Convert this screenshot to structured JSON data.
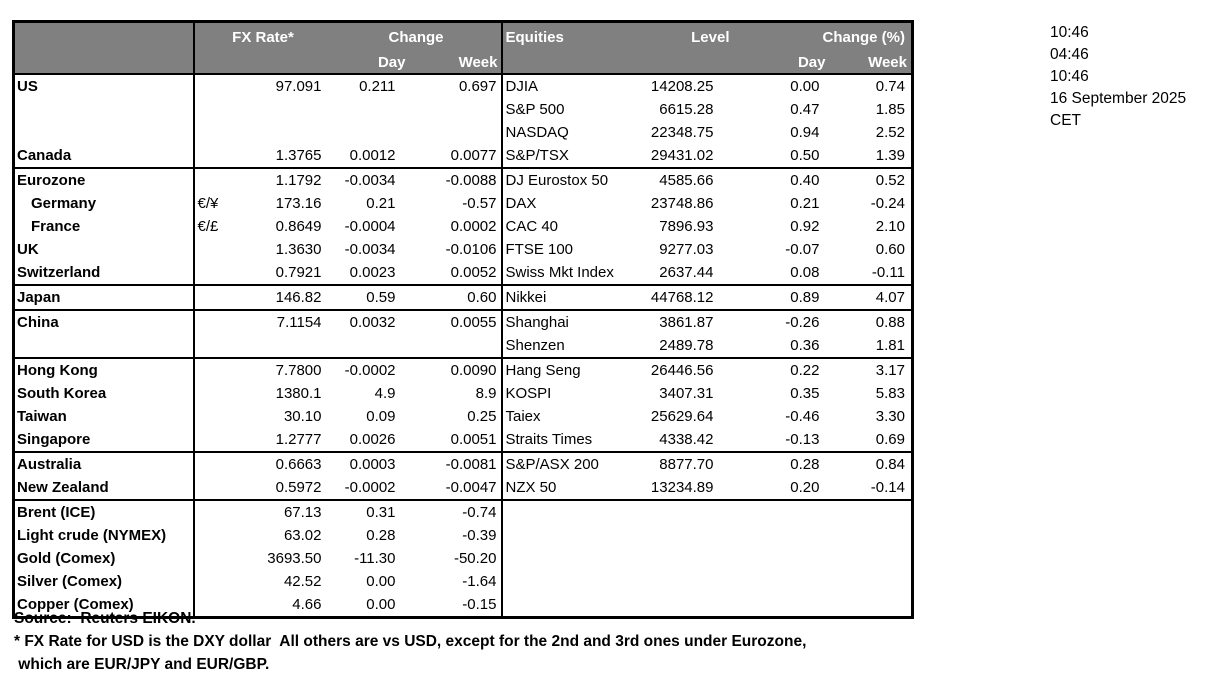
{
  "colors": {
    "header_bg": "#808080",
    "header_text": "#ffffff",
    "border": "#000000",
    "background": "#ffffff",
    "text": "#000000"
  },
  "table": {
    "header": {
      "fx_rate": "FX Rate*",
      "change": "Change",
      "day": "Day",
      "week": "Week",
      "equities": "Equities",
      "level": "Level",
      "change_pct": "Change (%)"
    },
    "rows": [
      {
        "country": "US",
        "pair": "",
        "rate": "97.091",
        "fx_day": "0.211",
        "fx_week": "0.697",
        "equity": "DJIA",
        "level": "14208.25",
        "eq_day": "0.00",
        "eq_week": "0.74",
        "group": false,
        "indent": false
      },
      {
        "country": "",
        "pair": "",
        "rate": "",
        "fx_day": "",
        "fx_week": "",
        "equity": "S&P 500",
        "level": "6615.28",
        "eq_day": "0.47",
        "eq_week": "1.85",
        "group": false,
        "indent": false
      },
      {
        "country": "",
        "pair": "",
        "rate": "",
        "fx_day": "",
        "fx_week": "",
        "equity": "NASDAQ",
        "level": "22348.75",
        "eq_day": "0.94",
        "eq_week": "2.52",
        "group": false,
        "indent": false
      },
      {
        "country": "Canada",
        "pair": "",
        "rate": "1.3765",
        "fx_day": "0.0012",
        "fx_week": "0.0077",
        "equity": "S&P/TSX",
        "level": "29431.02",
        "eq_day": "0.50",
        "eq_week": "1.39",
        "group": false,
        "indent": false
      },
      {
        "country": "Eurozone",
        "pair": "",
        "rate": "1.1792",
        "fx_day": "-0.0034",
        "fx_week": "-0.0088",
        "equity": "DJ Eurostox 50",
        "level": "4585.66",
        "eq_day": "0.40",
        "eq_week": "0.52",
        "group": true,
        "indent": false
      },
      {
        "country": "Germany",
        "pair": "€/¥",
        "rate": "173.16",
        "fx_day": "0.21",
        "fx_week": "-0.57",
        "equity": "DAX",
        "level": "23748.86",
        "eq_day": "0.21",
        "eq_week": "-0.24",
        "group": false,
        "indent": true
      },
      {
        "country": "France",
        "pair": "€/£",
        "rate": "0.8649",
        "fx_day": "-0.0004",
        "fx_week": "0.0002",
        "equity": "CAC 40",
        "level": "7896.93",
        "eq_day": "0.92",
        "eq_week": "2.10",
        "group": false,
        "indent": true
      },
      {
        "country": "UK",
        "pair": "",
        "rate": "1.3630",
        "fx_day": "-0.0034",
        "fx_week": "-0.0106",
        "equity": "FTSE 100",
        "level": "9277.03",
        "eq_day": "-0.07",
        "eq_week": "0.60",
        "group": false,
        "indent": false
      },
      {
        "country": "Switzerland",
        "pair": "",
        "rate": "0.7921",
        "fx_day": "0.0023",
        "fx_week": "0.0052",
        "equity": "Swiss Mkt Index",
        "level": "2637.44",
        "eq_day": "0.08",
        "eq_week": "-0.11",
        "group": false,
        "indent": false
      },
      {
        "country": "Japan",
        "pair": "",
        "rate": "146.82",
        "fx_day": "0.59",
        "fx_week": "0.60",
        "equity": "Nikkei",
        "level": "44768.12",
        "eq_day": "0.89",
        "eq_week": "4.07",
        "group": true,
        "indent": false
      },
      {
        "country": "China",
        "pair": "",
        "rate": "7.1154",
        "fx_day": "0.0032",
        "fx_week": "0.0055",
        "equity": "Shanghai",
        "level": "3861.87",
        "eq_day": "-0.26",
        "eq_week": "0.88",
        "group": true,
        "indent": false
      },
      {
        "country": "",
        "pair": "",
        "rate": "",
        "fx_day": "",
        "fx_week": "",
        "equity": "Shenzen",
        "level": "2489.78",
        "eq_day": "0.36",
        "eq_week": "1.81",
        "group": false,
        "indent": false
      },
      {
        "country": "Hong Kong",
        "pair": "",
        "rate": "7.7800",
        "fx_day": "-0.0002",
        "fx_week": "0.0090",
        "equity": "Hang Seng",
        "level": "26446.56",
        "eq_day": "0.22",
        "eq_week": "3.17",
        "group": true,
        "indent": false
      },
      {
        "country": "South Korea",
        "pair": "",
        "rate": "1380.1",
        "fx_day": "4.9",
        "fx_week": "8.9",
        "equity": "KOSPI",
        "level": "3407.31",
        "eq_day": "0.35",
        "eq_week": "5.83",
        "group": false,
        "indent": false
      },
      {
        "country": "Taiwan",
        "pair": "",
        "rate": "30.10",
        "fx_day": "0.09",
        "fx_week": "0.25",
        "equity": "Taiex",
        "level": "25629.64",
        "eq_day": "-0.46",
        "eq_week": "3.30",
        "group": false,
        "indent": false
      },
      {
        "country": "Singapore",
        "pair": "",
        "rate": "1.2777",
        "fx_day": "0.0026",
        "fx_week": "0.0051",
        "equity": "Straits Times",
        "level": "4338.42",
        "eq_day": "-0.13",
        "eq_week": "0.69",
        "group": false,
        "indent": false
      },
      {
        "country": "Australia",
        "pair": "",
        "rate": "0.6663",
        "fx_day": "0.0003",
        "fx_week": "-0.0081",
        "equity": "S&P/ASX  200",
        "level": "8877.70",
        "eq_day": "0.28",
        "eq_week": "0.84",
        "group": true,
        "indent": false
      },
      {
        "country": "New Zealand",
        "pair": "",
        "rate": "0.5972",
        "fx_day": "-0.0002",
        "fx_week": "-0.0047",
        "equity": "NZX 50",
        "level": "13234.89",
        "eq_day": "0.20",
        "eq_week": "-0.14",
        "group": false,
        "indent": false
      },
      {
        "country": "Brent (ICE)",
        "pair": "",
        "rate": "67.13",
        "fx_day": "0.31",
        "fx_week": "-0.74",
        "equity": "",
        "level": "",
        "eq_day": "",
        "eq_week": "",
        "group": true,
        "indent": false
      },
      {
        "country": "Light crude (NYMEX)",
        "pair": "",
        "rate": "63.02",
        "fx_day": "0.28",
        "fx_week": "-0.39",
        "equity": "",
        "level": "",
        "eq_day": "",
        "eq_week": "",
        "group": false,
        "indent": false
      },
      {
        "country": "Gold (Comex)",
        "pair": "",
        "rate": "3693.50",
        "fx_day": "-11.30",
        "fx_week": "-50.20",
        "equity": "",
        "level": "",
        "eq_day": "",
        "eq_week": "",
        "group": false,
        "indent": false
      },
      {
        "country": "Silver (Comex)",
        "pair": "",
        "rate": "42.52",
        "fx_day": "0.00",
        "fx_week": "-1.64",
        "equity": "",
        "level": "",
        "eq_day": "",
        "eq_week": "",
        "group": false,
        "indent": false
      },
      {
        "country": "Copper (Comex)",
        "pair": "",
        "rate": "4.66",
        "fx_day": "0.00",
        "fx_week": "-0.15",
        "equity": "",
        "level": "",
        "eq_day": "",
        "eq_week": "",
        "group": false,
        "indent": false
      }
    ]
  },
  "timestamps": {
    "lines": [
      "10:46",
      "04:46",
      "10:46",
      "16 September 2025",
      "CET"
    ]
  },
  "footer": {
    "source": "Source:  Reuters EIKON.",
    "note1": "* FX Rate for USD is the DXY dollar  All others are vs USD, except for the 2nd and 3rd ones under Eurozone,",
    "note2": " which are EUR/JPY and EUR/GBP."
  }
}
